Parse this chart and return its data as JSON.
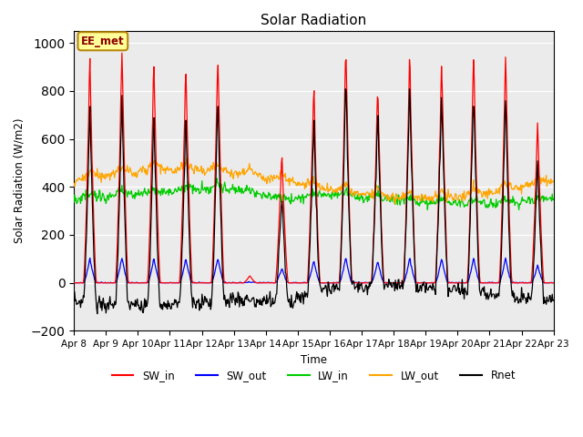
{
  "title": "Solar Radiation",
  "ylabel": "Solar Radiation (W/m2)",
  "xlabel": "Time",
  "ylim": [
    -200,
    1050
  ],
  "yticks": [
    -200,
    0,
    200,
    400,
    600,
    800,
    1000
  ],
  "x_tick_labels": [
    "Apr 8",
    "Apr 9",
    "Apr 10",
    "Apr 11",
    "Apr 12",
    "Apr 13",
    "Apr 14",
    "Apr 15",
    "Apr 16",
    "Apr 17",
    "Apr 18",
    "Apr 19",
    "Apr 20",
    "Apr 21",
    "Apr 22",
    "Apr 23"
  ],
  "annotation_text": "EE_met",
  "annotation_color": "#8B0000",
  "annotation_bg": "#FFFF99",
  "annotation_border": "#B8860B",
  "bg_color": "#EBEBEB",
  "colors": {
    "SW_in": "#FF0000",
    "SW_out": "#0000FF",
    "LW_in": "#00CC00",
    "LW_out": "#FFA500",
    "Rnet": "#000000"
  }
}
